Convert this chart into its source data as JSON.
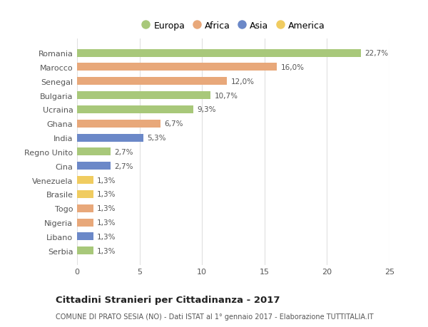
{
  "categories": [
    "Romania",
    "Marocco",
    "Senegal",
    "Bulgaria",
    "Ucraina",
    "Ghana",
    "India",
    "Regno Unito",
    "Cina",
    "Venezuela",
    "Brasile",
    "Togo",
    "Nigeria",
    "Libano",
    "Serbia"
  ],
  "values": [
    22.7,
    16.0,
    12.0,
    10.7,
    9.3,
    6.7,
    5.3,
    2.7,
    2.7,
    1.3,
    1.3,
    1.3,
    1.3,
    1.3,
    1.3
  ],
  "labels": [
    "22,7%",
    "16,0%",
    "12,0%",
    "10,7%",
    "9,3%",
    "6,7%",
    "5,3%",
    "2,7%",
    "2,7%",
    "1,3%",
    "1,3%",
    "1,3%",
    "1,3%",
    "1,3%",
    "1,3%"
  ],
  "continents": [
    "Europa",
    "Africa",
    "Africa",
    "Europa",
    "Europa",
    "Africa",
    "Asia",
    "Europa",
    "Asia",
    "America",
    "America",
    "Africa",
    "Africa",
    "Asia",
    "Europa"
  ],
  "continent_colors": {
    "Europa": "#a8c87a",
    "Africa": "#e8a87a",
    "Asia": "#6b88c8",
    "America": "#f0cc60"
  },
  "legend_order": [
    "Europa",
    "Africa",
    "Asia",
    "America"
  ],
  "title": "Cittadini Stranieri per Cittadinanza - 2017",
  "subtitle": "COMUNE DI PRATO SESIA (NO) - Dati ISTAT al 1° gennaio 2017 - Elaborazione TUTTITALIA.IT",
  "xlim": [
    0,
    25
  ],
  "xticks": [
    0,
    5,
    10,
    15,
    20,
    25
  ],
  "background_color": "#ffffff",
  "grid_color": "#e0e0e0",
  "bar_height": 0.55,
  "bar_alpha": 1.0,
  "label_fontsize": 7.5,
  "tick_fontsize": 8.0,
  "title_fontsize": 9.5,
  "subtitle_fontsize": 7.0
}
